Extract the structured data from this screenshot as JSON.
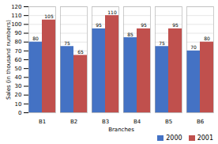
{
  "chart_data": {
    "type": "bar",
    "categories": [
      "B1",
      "B2",
      "B3",
      "B4",
      "B5",
      "B6"
    ],
    "series": [
      {
        "name": "2000",
        "color": "#4472C4",
        "values": [
          80,
          75,
          95,
          85,
          75,
          70
        ]
      },
      {
        "name": "2001",
        "color": "#C0504D",
        "values": [
          105,
          65,
          110,
          95,
          95,
          80
        ]
      }
    ],
    "xlabel": "Branches",
    "ylabel": "Sales (in thousand numbers)",
    "ylim": [
      0,
      120
    ],
    "yticks": [
      0,
      10,
      20,
      30,
      40,
      50,
      60,
      70,
      80,
      90,
      100,
      110,
      120
    ],
    "grid": true,
    "legend": "lower right",
    "data_labels": true
  }
}
